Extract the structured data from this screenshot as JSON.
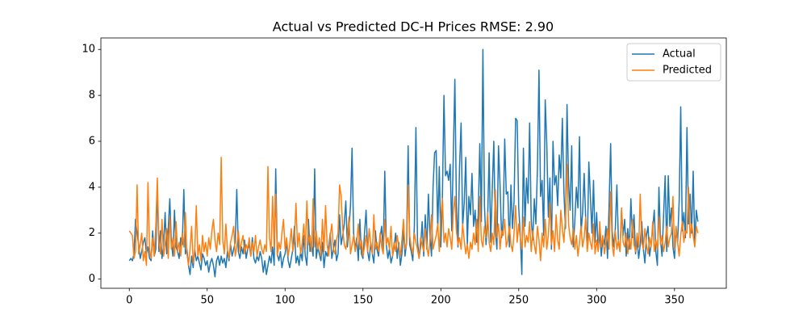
{
  "chart_data": {
    "type": "line",
    "title": "Actual vs Predicted DC-H Prices RMSE: 2.90",
    "x": [
      0,
      1,
      2,
      3,
      4,
      5,
      6,
      7,
      8,
      9,
      10,
      11,
      12,
      13,
      14,
      15,
      16,
      17,
      18,
      19,
      20,
      21,
      22,
      23,
      24,
      25,
      26,
      27,
      28,
      29,
      30,
      31,
      32,
      33,
      34,
      35,
      36,
      37,
      38,
      39,
      40,
      41,
      42,
      43,
      44,
      45,
      46,
      47,
      48,
      49,
      50,
      51,
      52,
      53,
      54,
      55,
      56,
      57,
      58,
      59,
      60,
      61,
      62,
      63,
      64,
      65,
      66,
      67,
      68,
      69,
      70,
      71,
      72,
      73,
      74,
      75,
      76,
      77,
      78,
      79,
      80,
      81,
      82,
      83,
      84,
      85,
      86,
      87,
      88,
      89,
      90,
      91,
      92,
      93,
      94,
      95,
      96,
      97,
      98,
      99,
      100,
      101,
      102,
      103,
      104,
      105,
      106,
      107,
      108,
      109,
      110,
      111,
      112,
      113,
      114,
      115,
      116,
      117,
      118,
      119,
      120,
      121,
      122,
      123,
      124,
      125,
      126,
      127,
      128,
      129,
      130,
      131,
      132,
      133,
      134,
      135,
      136,
      137,
      138,
      139,
      140,
      141,
      142,
      143,
      144,
      145,
      146,
      147,
      148,
      149,
      150,
      151,
      152,
      153,
      154,
      155,
      156,
      157,
      158,
      159,
      160,
      161,
      162,
      163,
      164,
      165,
      166,
      167,
      168,
      169,
      170,
      171,
      172,
      173,
      174,
      175,
      176,
      177,
      178,
      179,
      180,
      181,
      182,
      183,
      184,
      185,
      186,
      187,
      188,
      189,
      190,
      191,
      192,
      193,
      194,
      195,
      196,
      197,
      198,
      199,
      200,
      201,
      202,
      203,
      204,
      205,
      206,
      207,
      208,
      209,
      210,
      211,
      212,
      213,
      214,
      215,
      216,
      217,
      218,
      219,
      220,
      221,
      222,
      223,
      224,
      225,
      226,
      227,
      228,
      229,
      230,
      231,
      232,
      233,
      234,
      235,
      236,
      237,
      238,
      239,
      240,
      241,
      242,
      243,
      244,
      245,
      246,
      247,
      248,
      249,
      250,
      251,
      252,
      253,
      254,
      255,
      256,
      257,
      258,
      259,
      260,
      261,
      262,
      263,
      264,
      265,
      266,
      267,
      268,
      269,
      270,
      271,
      272,
      273,
      274,
      275,
      276,
      277,
      278,
      279,
      280,
      281,
      282,
      283,
      284,
      285,
      286,
      287,
      288,
      289,
      290,
      291,
      292,
      293,
      294,
      295,
      296,
      297,
      298,
      299,
      300,
      301,
      302,
      303,
      304,
      305,
      306,
      307,
      308,
      309,
      310,
      311,
      312,
      313,
      314,
      315,
      316,
      317,
      318,
      319,
      320,
      321,
      322,
      323,
      324,
      325,
      326,
      327,
      328,
      329,
      330,
      331,
      332,
      333,
      334,
      335,
      336,
      337,
      338,
      339,
      340,
      341,
      342,
      343,
      344,
      345,
      346,
      347,
      348,
      349,
      350,
      351,
      352,
      353,
      354,
      355,
      356,
      357,
      358,
      359,
      360,
      361,
      362,
      363,
      364,
      365
    ],
    "series": [
      {
        "name": "Actual",
        "color": "#1f77b4",
        "values": [
          0.8,
          0.9,
          0.8,
          1.1,
          2.6,
          2.0,
          1.5,
          0.9,
          1.2,
          1.6,
          1.8,
          1.1,
          1.4,
          0.9,
          0.8,
          2.1,
          1.0,
          1.3,
          4.0,
          1.2,
          2.1,
          0.9,
          1.5,
          2.9,
          1.1,
          2.2,
          3.5,
          1.6,
          1.0,
          3.0,
          1.4,
          1.2,
          0.9,
          1.8,
          1.5,
          3.9,
          1.1,
          1.3,
          0.6,
          0.2,
          1.0,
          0.5,
          1.3,
          0.8,
          1.0,
          0.7,
          0.4,
          1.1,
          0.9,
          0.6,
          0.8,
          0.3,
          0.7,
          0.9,
          0.6,
          0.1,
          0.8,
          1.0,
          0.6,
          1.0,
          0.7,
          0.9,
          0.5,
          1.2,
          0.8,
          1.5,
          1.0,
          1.3,
          1.6,
          3.9,
          1.2,
          0.9,
          1.4,
          1.1,
          1.7,
          0.9,
          1.3,
          1.5,
          1.0,
          1.8,
          0.9,
          0.7,
          1.0,
          0.8,
          1.2,
          0.9,
          0.3,
          0.8,
          0.2,
          0.6,
          1.0,
          0.7,
          1.4,
          0.6,
          4.8,
          1.1,
          0.8,
          1.2,
          0.5,
          0.9,
          1.1,
          1.6,
          0.8,
          0.5,
          0.9,
          1.3,
          2.3,
          0.7,
          1.0,
          0.6,
          1.2,
          0.8,
          1.9,
          1.0,
          0.6,
          2.6,
          1.2,
          1.5,
          1.0,
          4.8,
          0.9,
          1.4,
          1.1,
          0.8,
          1.6,
          0.5,
          1.2,
          1.0,
          1.4,
          2.0,
          0.9,
          1.3,
          1.7,
          0.8,
          1.1,
          2.8,
          1.5,
          1.9,
          2.4,
          3.4,
          1.4,
          2.2,
          3.2,
          5.7,
          2.0,
          1.3,
          1.8,
          0.8,
          2.6,
          1.1,
          0.9,
          2.0,
          3.0,
          1.2,
          0.8,
          1.6,
          1.1,
          0.7,
          2.1,
          1.3,
          1.0,
          1.8,
          2.3,
          1.2,
          4.7,
          1.5,
          0.9,
          1.3,
          0.7,
          1.0,
          1.4,
          2.0,
          0.9,
          1.6,
          0.6,
          1.1,
          2.2,
          1.0,
          1.6,
          5.8,
          1.5,
          1.2,
          0.8,
          2.3,
          6.6,
          1.7,
          0.9,
          1.4,
          2.5,
          1.0,
          2.8,
          1.3,
          3.7,
          1.9,
          1.0,
          4.0,
          5.5,
          5.6,
          2.1,
          4.9,
          1.4,
          3.6,
          8.0,
          4.5,
          4.7,
          4.3,
          5.0,
          2.1,
          5.4,
          8.7,
          3.2,
          1.4,
          4.9,
          6.8,
          2.3,
          3.3,
          5.3,
          1.5,
          3.6,
          2.8,
          4.6,
          2.3,
          3.0,
          1.6,
          2.8,
          5.9,
          2.5,
          10.0,
          3.2,
          1.5,
          2.5,
          5.5,
          1.6,
          3.9,
          6.0,
          2.1,
          1.3,
          5.8,
          4.1,
          1.8,
          2.6,
          6.1,
          3.7,
          3.8,
          1.4,
          4.1,
          2.2,
          3.4,
          7.0,
          6.9,
          3.1,
          1.9,
          0.2,
          5.7,
          2.3,
          4.4,
          3.3,
          6.8,
          2.6,
          1.7,
          3.5,
          2.4,
          4.8,
          9.1,
          3.6,
          4.3,
          1.9,
          7.8,
          5.9,
          2.7,
          4.4,
          1.3,
          6.0,
          4.1,
          4.5,
          3.2,
          5.4,
          4.4,
          7.0,
          3.8,
          2.2,
          7.6,
          4.2,
          3.0,
          5.8,
          1.4,
          2.5,
          4.0,
          3.1,
          6.2,
          2.0,
          2.9,
          4.6,
          2.6,
          1.3,
          5.1,
          3.6,
          2.0,
          4.3,
          1.6,
          2.9,
          1.3,
          2.0,
          1.0,
          1.8,
          1.5,
          2.3,
          0.9,
          3.2,
          5.9,
          2.1,
          1.4,
          2.2,
          4.1,
          1.6,
          1.2,
          3.0,
          1.9,
          2.6,
          1.0,
          2.2,
          1.3,
          3.5,
          1.8,
          2.8,
          1.1,
          1.7,
          0.9,
          1.5,
          2.5,
          1.3,
          0.7,
          1.9,
          2.3,
          1.0,
          1.5,
          2.2,
          3.0,
          1.2,
          0.6,
          4.0,
          1.7,
          1.0,
          2.8,
          4.5,
          1.2,
          4.5,
          2.3,
          3.1,
          1.4,
          0.9,
          2.2,
          1.6,
          3.4,
          7.5,
          2.1,
          2.9,
          1.8,
          6.6,
          2.4,
          3.7,
          2.0,
          4.7,
          1.5,
          3.0,
          2.5
        ]
      },
      {
        "name": "Predicted",
        "color": "#ff7f0e",
        "values": [
          2.1,
          2.0,
          1.9,
          0.9,
          1.2,
          4.1,
          1.1,
          1.5,
          2.0,
          0.8,
          1.2,
          0.6,
          4.2,
          1.3,
          0.9,
          1.8,
          1.0,
          2.3,
          4.4,
          1.6,
          1.1,
          2.6,
          1.0,
          1.5,
          2.2,
          0.9,
          2.7,
          1.3,
          1.8,
          1.0,
          2.5,
          1.2,
          1.6,
          1.0,
          2.0,
          1.4,
          2.9,
          1.1,
          0.6,
          1.3,
          2.3,
          0.7,
          1.2,
          3.2,
          1.0,
          1.5,
          0.8,
          1.9,
          1.2,
          1.6,
          1.0,
          1.8,
          1.3,
          2.1,
          2.6,
          1.7,
          1.2,
          2.0,
          1.5,
          5.3,
          1.7,
          1.1,
          2.4,
          1.3,
          0.9,
          1.6,
          1.9,
          2.3,
          1.0,
          1.4,
          2.1,
          1.2,
          1.6,
          1.9,
          1.1,
          1.5,
          1.3,
          1.8,
          1.0,
          1.6,
          1.2,
          1.9,
          1.0,
          1.4,
          1.7,
          1.3,
          1.1,
          1.5,
          1.2,
          4.9,
          1.8,
          1.2,
          3.6,
          1.4,
          3.7,
          1.0,
          1.6,
          1.3,
          2.0,
          2.6,
          1.3,
          1.8,
          1.0,
          1.5,
          2.2,
          1.2,
          1.7,
          3.3,
          1.4,
          2.0,
          1.1,
          1.6,
          2.4,
          1.3,
          3.4,
          1.5,
          1.9,
          1.2,
          3.5,
          1.4,
          2.1,
          1.3,
          1.8,
          1.0,
          2.6,
          1.2,
          3.2,
          1.5,
          1.0,
          1.9,
          2.4,
          1.3,
          1.1,
          1.7,
          2.0,
          4.1,
          3.6,
          2.2,
          1.5,
          1.3,
          1.8,
          2.7,
          1.1,
          1.5,
          1.9,
          1.2,
          1.6,
          2.4,
          1.3,
          1.7,
          1.0,
          1.4,
          1.9,
          1.2,
          2.2,
          1.5,
          1.1,
          2.8,
          1.3,
          1.6,
          1.2,
          2.0,
          1.4,
          1.1,
          2.6,
          1.5,
          1.8,
          1.3,
          2.3,
          1.0,
          1.6,
          1.2,
          1.9,
          1.4,
          1.0,
          1.7,
          2.6,
          1.3,
          1.5,
          4.1,
          1.9,
          1.4,
          1.1,
          2.0,
          1.6,
          1.3,
          0.9,
          1.8,
          1.5,
          1.2,
          2.2,
          1.4,
          1.0,
          1.7,
          2.8,
          1.3,
          1.6,
          1.9,
          2.4,
          1.2,
          2.7,
          3.5,
          1.6,
          2.0,
          1.4,
          2.2,
          1.8,
          1.3,
          2.9,
          3.6,
          2.1,
          1.5,
          1.8,
          1.3,
          2.4,
          1.7,
          1.1,
          1.5,
          0.9,
          1.6,
          1.3,
          2.0,
          1.5,
          2.6,
          1.2,
          3.6,
          1.7,
          1.4,
          2.3,
          1.8,
          2.9,
          1.6,
          1.2,
          2.0,
          1.5,
          3.9,
          1.8,
          2.4,
          1.3,
          2.1,
          1.9,
          2.6,
          1.4,
          1.7,
          2.3,
          1.5,
          1.2,
          2.0,
          3.2,
          1.6,
          2.4,
          1.8,
          1.3,
          2.7,
          1.4,
          1.9,
          1.6,
          2.5,
          1.2,
          2.1,
          1.5,
          1.1,
          2.3,
          1.7,
          0.8,
          2.0,
          1.4,
          2.6,
          1.3,
          1.9,
          3.3,
          1.5,
          2.1,
          1.2,
          2.8,
          1.7,
          1.3,
          3.0,
          2.2,
          1.6,
          2.7,
          5.0,
          2.4,
          1.8,
          1.5,
          2.2,
          1.3,
          1.9,
          1.0,
          1.6,
          2.3,
          1.4,
          1.8,
          2.7,
          1.2,
          2.0,
          1.6,
          1.3,
          2.4,
          1.1,
          1.7,
          1.2,
          2.5,
          1.4,
          1.9,
          1.1,
          1.6,
          2.2,
          1.3,
          3.8,
          1.5,
          1.0,
          2.1,
          1.3,
          1.7,
          1.2,
          3.1,
          1.6,
          1.4,
          2.0,
          1.1,
          1.8,
          1.3,
          2.6,
          1.5,
          1.2,
          2.0,
          1.4,
          3.7,
          1.6,
          1.3,
          2.2,
          1.5,
          1.1,
          1.8,
          1.4,
          2.5,
          1.2,
          1.7,
          1.3,
          2.7,
          1.5,
          1.9,
          1.2,
          1.6,
          2.3,
          1.4,
          1.8,
          2.0,
          3.6,
          1.3,
          2.3,
          1.6,
          1.0,
          1.9,
          2.5,
          1.6,
          2.1,
          2.0,
          4.0,
          1.8,
          2.4,
          1.9,
          1.4,
          2.3,
          2.0
        ]
      }
    ],
    "xlim": [
      -18.25,
      383.25
    ],
    "xticks": [
      0,
      50,
      100,
      150,
      200,
      250,
      300,
      350
    ],
    "ylim": [
      -0.4,
      10.5
    ],
    "yticks": [
      0,
      2,
      4,
      6,
      8,
      10
    ],
    "legend": "upper right"
  }
}
